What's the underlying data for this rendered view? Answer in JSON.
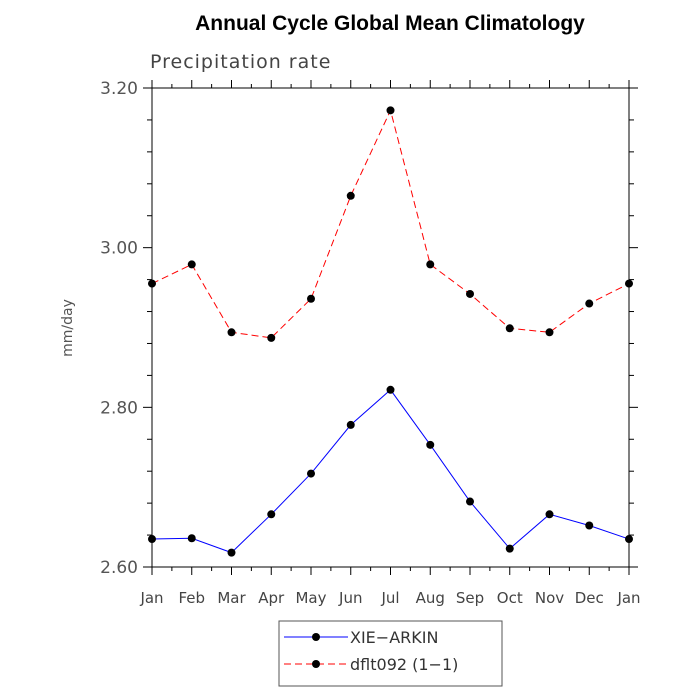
{
  "chart_data": {
    "type": "line",
    "title": "Annual Cycle Global Mean Climatology",
    "subtitle": "Precipitation rate",
    "ylabel": "mm/day",
    "xlabel": "",
    "categories": [
      "Jan",
      "Feb",
      "Mar",
      "Apr",
      "May",
      "Jun",
      "Jul",
      "Aug",
      "Sep",
      "Oct",
      "Nov",
      "Dec",
      "Jan"
    ],
    "ylim": [
      2.6,
      3.2
    ],
    "yticks": [
      2.6,
      2.8,
      3.0,
      3.2
    ],
    "ytick_labels": [
      "2.60",
      "2.80",
      "3.00",
      "3.20"
    ],
    "legend_position": "bottom-center",
    "grid": false,
    "series": [
      {
        "name": "XIE−ARKIN",
        "color": "#0000ff",
        "line_style": "solid",
        "marker": "filled-circle",
        "values": [
          2.635,
          2.636,
          2.618,
          2.666,
          2.717,
          2.778,
          2.822,
          2.753,
          2.682,
          2.623,
          2.666,
          2.652,
          2.635
        ]
      },
      {
        "name": "dflt092 (1−1)",
        "color": "#ff0000",
        "line_style": "dashed",
        "marker": "filled-circle",
        "values": [
          2.955,
          2.979,
          2.894,
          2.887,
          2.936,
          3.065,
          3.172,
          2.979,
          2.942,
          2.899,
          2.894,
          2.93,
          2.955
        ]
      }
    ]
  }
}
